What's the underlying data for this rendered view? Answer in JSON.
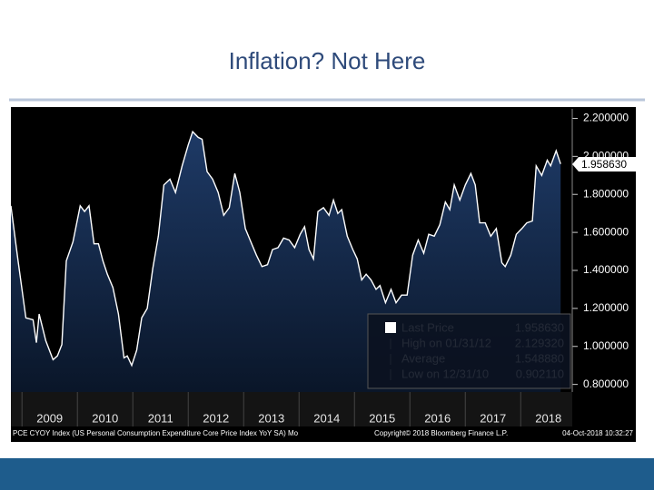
{
  "chart_data": {
    "type": "area",
    "title": "Inflation? Not Here",
    "x": [
      2008.8,
      2008.93,
      2009.07,
      2009.2,
      2009.26,
      2009.31,
      2009.43,
      2009.56,
      2009.64,
      2009.72,
      2009.8,
      2009.92,
      2010.05,
      2010.13,
      2010.21,
      2010.3,
      2010.38,
      2010.46,
      2010.54,
      2010.64,
      2010.74,
      2010.84,
      2010.9,
      2010.98,
      2011.07,
      2011.16,
      2011.26,
      2011.36,
      2011.46,
      2011.56,
      2011.67,
      2011.77,
      2011.89,
      2012.0,
      2012.08,
      2012.18,
      2012.25,
      2012.34,
      2012.44,
      2012.54,
      2012.64,
      2012.74,
      2012.84,
      2012.93,
      2013.03,
      2013.13,
      2013.23,
      2013.33,
      2013.43,
      2013.52,
      2013.62,
      2013.72,
      2013.82,
      2013.92,
      2014.02,
      2014.1,
      2014.18,
      2014.26,
      2014.34,
      2014.44,
      2014.54,
      2014.62,
      2014.7,
      2014.77,
      2014.87,
      2014.97,
      2015.05,
      2015.13,
      2015.21,
      2015.3,
      2015.39,
      2015.46,
      2015.56,
      2015.66,
      2015.75,
      2015.85,
      2015.95,
      2016.05,
      2016.15,
      2016.25,
      2016.34,
      2016.44,
      2016.54,
      2016.64,
      2016.72,
      2016.8,
      2016.9,
      2017.0,
      2017.1,
      2017.18,
      2017.26,
      2017.36,
      2017.46,
      2017.56,
      2017.66,
      2017.72,
      2017.82,
      2017.92,
      2018.02,
      2018.11,
      2018.21,
      2018.28,
      2018.38,
      2018.48,
      2018.54,
      2018.64,
      2018.72
    ],
    "series": [
      {
        "name": "PCE CYOY Index (US Personal Consumption Expenditure Core Price Index YoY SA)  Mo",
        "color": "#ffffff",
        "values": [
          1.74,
          1.45,
          1.15,
          1.14,
          1.02,
          1.17,
          1.03,
          0.93,
          0.95,
          1.01,
          1.45,
          1.55,
          1.74,
          1.71,
          1.74,
          1.54,
          1.54,
          1.45,
          1.38,
          1.31,
          1.17,
          0.94,
          0.95,
          0.9,
          0.98,
          1.15,
          1.2,
          1.41,
          1.58,
          1.85,
          1.88,
          1.81,
          1.95,
          2.06,
          2.13,
          2.1,
          2.09,
          1.92,
          1.88,
          1.81,
          1.69,
          1.73,
          1.91,
          1.81,
          1.62,
          1.55,
          1.48,
          1.42,
          1.43,
          1.51,
          1.52,
          1.57,
          1.56,
          1.52,
          1.59,
          1.63,
          1.51,
          1.46,
          1.71,
          1.73,
          1.69,
          1.77,
          1.7,
          1.72,
          1.58,
          1.51,
          1.46,
          1.35,
          1.38,
          1.35,
          1.3,
          1.32,
          1.23,
          1.3,
          1.23,
          1.27,
          1.27,
          1.48,
          1.56,
          1.49,
          1.59,
          1.58,
          1.64,
          1.76,
          1.72,
          1.85,
          1.77,
          1.85,
          1.91,
          1.85,
          1.65,
          1.65,
          1.58,
          1.62,
          1.44,
          1.42,
          1.48,
          1.59,
          1.62,
          1.65,
          1.66,
          1.95,
          1.9,
          1.98,
          1.95,
          2.03,
          1.96
        ]
      }
    ],
    "xlim": [
      2008.8,
      2018.93
    ],
    "xticks": [
      2009,
      2010,
      2011,
      2012,
      2013,
      2014,
      2015,
      2016,
      2017,
      2018
    ],
    "ylim": [
      0.76,
      2.25
    ],
    "yticks": [
      {
        "value": 0.8,
        "label": "0.800000"
      },
      {
        "value": 1.0,
        "label": "1.000000"
      },
      {
        "value": 1.2,
        "label": "1.200000"
      },
      {
        "value": 1.4,
        "label": "1.400000"
      },
      {
        "value": 1.6,
        "label": "1.600000"
      },
      {
        "value": 1.8,
        "label": "1.800000"
      },
      {
        "value": 2.0,
        "label": "2.000000"
      },
      {
        "value": 2.2,
        "label": "2.200000"
      }
    ],
    "last_value": {
      "value": 1.95863,
      "label": "1.958630"
    },
    "stats": [
      {
        "label": "Last Price",
        "value": "1.958630"
      },
      {
        "label": "High on 01/31/12",
        "value": "2.129320"
      },
      {
        "label": "Average",
        "value": "1.548880"
      },
      {
        "label": "Low on 12/31/10",
        "value": "0.902110"
      }
    ],
    "copyright": "Copyright© 2018 Bloomberg Finance L.P.",
    "timestamp": "04-Oct-2018 10:32:27",
    "legend": "bottom-right",
    "grid": false
  }
}
